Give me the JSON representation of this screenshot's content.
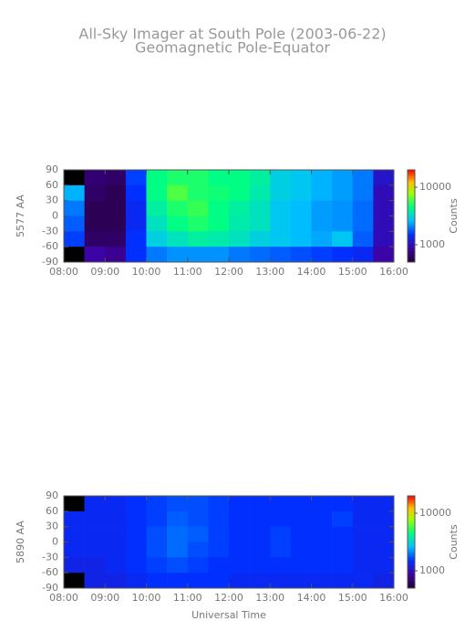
{
  "title": "All-Sky Imager at South Pole (2003-06-22)",
  "subtitle": "Geomagnetic Pole-Equator",
  "chart_data": [
    {
      "type": "heatmap",
      "ylabel": "5577 AA",
      "x": [
        8.25,
        8.75,
        9.25,
        9.75,
        10.25,
        10.75,
        11.25,
        11.75,
        12.25,
        12.75,
        13.25,
        13.75,
        14.25,
        14.75,
        15.25,
        15.75
      ],
      "y": [
        75,
        45,
        15,
        -15,
        -45,
        -75
      ],
      "z": [
        [
          null,
          700,
          650,
          1600,
          4500,
          5000,
          5000,
          4500,
          4500,
          4000,
          3000,
          2800,
          2500,
          2300,
          2000,
          1100
        ],
        [
          2500,
          650,
          600,
          1500,
          4500,
          6000,
          5000,
          4800,
          4500,
          3800,
          3000,
          2800,
          2500,
          2300,
          2000,
          1000
        ],
        [
          2000,
          600,
          600,
          1400,
          4000,
          5000,
          5500,
          4500,
          4000,
          3500,
          2800,
          2600,
          2300,
          2200,
          1900,
          1000
        ],
        [
          1800,
          600,
          600,
          1400,
          3500,
          4500,
          5000,
          4500,
          3800,
          3500,
          2800,
          2600,
          2300,
          2200,
          1900,
          1000
        ],
        [
          1600,
          650,
          650,
          1500,
          3000,
          3500,
          4000,
          3800,
          3500,
          3000,
          2800,
          2600,
          2400,
          2800,
          1800,
          1000
        ],
        [
          null,
          900,
          800,
          1500,
          2000,
          2200,
          2200,
          2200,
          2000,
          1900,
          1800,
          1700,
          1600,
          1500,
          1400,
          900
        ]
      ],
      "xlim": [
        8,
        16
      ],
      "xticks": [
        {
          "value": 8,
          "label": "08:00"
        },
        {
          "value": 9,
          "label": "09:00"
        },
        {
          "value": 10,
          "label": "10:00"
        },
        {
          "value": 11,
          "label": "11:00"
        },
        {
          "value": 12,
          "label": "12:00"
        },
        {
          "value": 13,
          "label": "13:00"
        },
        {
          "value": 14,
          "label": "14:00"
        },
        {
          "value": 15,
          "label": "15:00"
        },
        {
          "value": 16,
          "label": "16:00"
        }
      ],
      "ylim": [
        -90,
        90
      ],
      "yticks": [
        -90,
        -60,
        -30,
        0,
        30,
        60,
        90
      ],
      "clim": [
        500,
        20000
      ],
      "cticks": [
        1000,
        10000
      ],
      "color_scale": "log",
      "colorbar_label": "Counts"
    },
    {
      "type": "heatmap",
      "ylabel": "5890 AA",
      "xlabel": "Universal Time",
      "x": [
        8.25,
        8.75,
        9.25,
        9.75,
        10.25,
        10.75,
        11.25,
        11.75,
        12.25,
        12.75,
        13.25,
        13.75,
        14.25,
        14.75,
        15.25,
        15.75
      ],
      "y": [
        75,
        45,
        15,
        -15,
        -45,
        -75
      ],
      "z": [
        [
          null,
          1400,
          1400,
          1500,
          1600,
          1700,
          1700,
          1600,
          1500,
          1500,
          1500,
          1500,
          1500,
          1500,
          1400,
          1400
        ],
        [
          1400,
          1400,
          1400,
          1500,
          1600,
          1800,
          1700,
          1600,
          1500,
          1500,
          1500,
          1500,
          1500,
          1600,
          1400,
          1400
        ],
        [
          1400,
          1400,
          1400,
          1500,
          1700,
          1900,
          1800,
          1600,
          1500,
          1500,
          1600,
          1500,
          1500,
          1500,
          1400,
          1400
        ],
        [
          1400,
          1400,
          1400,
          1500,
          1700,
          1900,
          1700,
          1600,
          1500,
          1500,
          1600,
          1500,
          1500,
          1500,
          1400,
          1400
        ],
        [
          1300,
          1300,
          1400,
          1500,
          1600,
          1700,
          1600,
          1500,
          1500,
          1500,
          1500,
          1500,
          1500,
          1500,
          1400,
          1400
        ],
        [
          null,
          1300,
          1300,
          1400,
          1500,
          1500,
          1500,
          1500,
          1400,
          1400,
          1400,
          1400,
          1400,
          1400,
          1400,
          1300
        ]
      ],
      "xlim": [
        8,
        16
      ],
      "xticks": [
        {
          "value": 8,
          "label": "08:00"
        },
        {
          "value": 9,
          "label": "09:00"
        },
        {
          "value": 10,
          "label": "10:00"
        },
        {
          "value": 11,
          "label": "11:00"
        },
        {
          "value": 12,
          "label": "12:00"
        },
        {
          "value": 13,
          "label": "13:00"
        },
        {
          "value": 14,
          "label": "14:00"
        },
        {
          "value": 15,
          "label": "15:00"
        },
        {
          "value": 16,
          "label": "16:00"
        }
      ],
      "ylim": [
        -90,
        90
      ],
      "yticks": [
        -90,
        -60,
        -30,
        0,
        30,
        60,
        90
      ],
      "clim": [
        500,
        20000
      ],
      "cticks": [
        1000,
        10000
      ],
      "color_scale": "log",
      "colorbar_label": "Counts"
    }
  ]
}
